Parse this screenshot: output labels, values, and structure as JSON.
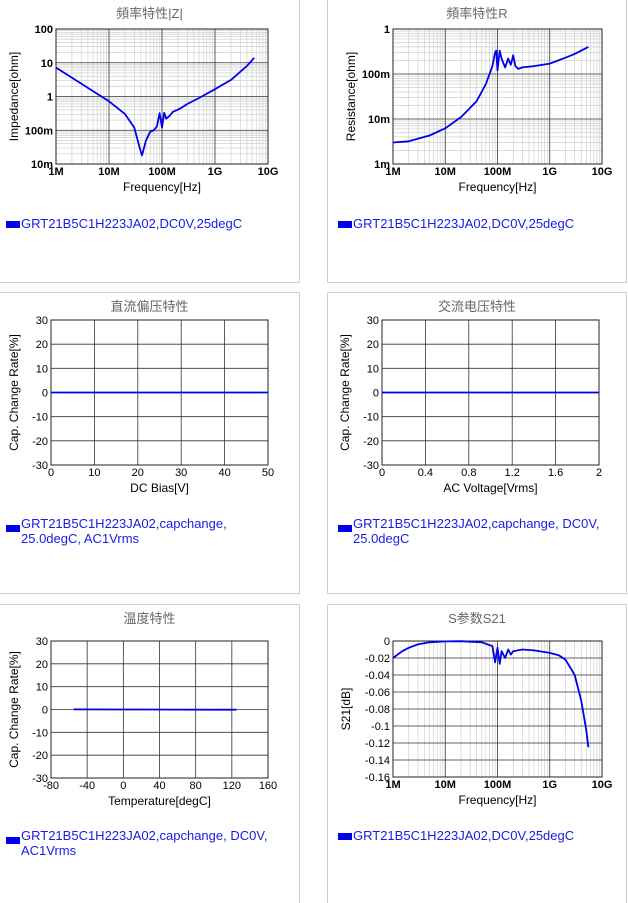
{
  "colors": {
    "series": "#0000ee",
    "grid": "#808080",
    "legend_text": "#1a1ae6"
  },
  "panels": [
    {
      "title": "頻率特性|Z|",
      "legend": "GRT21B5C1H223JA02,DC0V,25degC"
    },
    {
      "title": "頻率特性R",
      "legend": "GRT21B5C1H223JA02,DC0V,25degC"
    },
    {
      "title": "直流偏压特性",
      "legend_lines": [
        "GRT21B5C1H223JA02,capchange,",
        "25.0degC, AC1Vrms"
      ]
    },
    {
      "title": "交流电压特性",
      "legend_lines": [
        "GRT21B5C1H223JA02,capchange, DC0V,",
        "25.0degC"
      ]
    },
    {
      "title": "温度特性",
      "legend_lines": [
        "GRT21B5C1H223JA02,capchange, DC0V,",
        "AC1Vrms"
      ]
    },
    {
      "title": "S参数S21",
      "legend": "GRT21B5C1H223JA02,DC0V,25degC"
    }
  ],
  "chart_data": [
    {
      "type": "line",
      "title": "頻率特性|Z|",
      "xlabel": "Frequency[Hz]",
      "ylabel": "Impedance[ohm]",
      "xscale": "log",
      "yscale": "log",
      "xlim": [
        1000000,
        10000000000
      ],
      "ylim": [
        0.01,
        100
      ],
      "xticks": [
        "1M",
        "10M",
        "100M",
        "1G",
        "10G"
      ],
      "yticks": [
        "10m",
        "100m",
        "1",
        "10",
        "100"
      ],
      "grid": true,
      "series": [
        {
          "x": [
            1000000,
            2000000,
            5000000,
            10000000,
            20000000,
            30000000,
            38000000,
            42000000,
            50000000,
            60000000,
            70000000,
            80000000,
            90000000,
            100000000,
            110000000,
            120000000,
            140000000,
            160000000,
            180000000,
            200000000,
            230000000,
            300000000,
            500000000,
            1000000000,
            2000000000,
            4000000000,
            5500000000
          ],
          "y": [
            7.2,
            3.6,
            1.45,
            0.72,
            0.3,
            0.12,
            0.03,
            0.018,
            0.05,
            0.09,
            0.1,
            0.13,
            0.32,
            0.12,
            0.33,
            0.22,
            0.27,
            0.35,
            0.38,
            0.41,
            0.46,
            0.6,
            0.9,
            1.65,
            3.1,
            8.0,
            14.0
          ]
        }
      ]
    },
    {
      "type": "line",
      "title": "頻率特性R",
      "xlabel": "Frequency[Hz]",
      "ylabel": "Resistance[ohm]",
      "xscale": "log",
      "yscale": "log",
      "xlim": [
        1000000,
        10000000000
      ],
      "ylim": [
        0.001,
        1
      ],
      "xticks": [
        "1M",
        "10M",
        "100M",
        "1G",
        "10G"
      ],
      "yticks": [
        "1m",
        "10m",
        "100m",
        "1"
      ],
      "grid": true,
      "series": [
        {
          "x": [
            1000000,
            2000000,
            5000000,
            10000000,
            20000000,
            40000000,
            60000000,
            80000000,
            90000000,
            95000000,
            100000000,
            110000000,
            120000000,
            140000000,
            160000000,
            180000000,
            200000000,
            220000000,
            250000000,
            300000000,
            500000000,
            1000000000,
            2000000000,
            3000000000,
            5500000000
          ],
          "y": [
            0.003,
            0.0032,
            0.0043,
            0.0062,
            0.011,
            0.025,
            0.06,
            0.15,
            0.3,
            0.33,
            0.12,
            0.33,
            0.22,
            0.14,
            0.22,
            0.16,
            0.26,
            0.15,
            0.13,
            0.14,
            0.15,
            0.17,
            0.23,
            0.28,
            0.4
          ]
        }
      ]
    },
    {
      "type": "line",
      "title": "直流偏压特性",
      "xlabel": "DC Bias[V]",
      "ylabel": "Cap. Change Rate[%]",
      "xlim": [
        0,
        50
      ],
      "ylim": [
        -30,
        30
      ],
      "xticks": [
        "0",
        "10",
        "20",
        "30",
        "40",
        "50"
      ],
      "yticks": [
        "-30",
        "-20",
        "-10",
        "0",
        "10",
        "20",
        "30"
      ],
      "grid": true,
      "series": [
        {
          "x": [
            0,
            50
          ],
          "y": [
            0,
            0
          ]
        }
      ]
    },
    {
      "type": "line",
      "title": "交流电压特性",
      "xlabel": "AC Voltage[Vrms]",
      "ylabel": "Cap. Change Rate[%]",
      "xlim": [
        0,
        2
      ],
      "ylim": [
        -30,
        30
      ],
      "xticks": [
        "0",
        "0.4",
        "0.8",
        "1.2",
        "1.6",
        "2"
      ],
      "yticks": [
        "-30",
        "-20",
        "-10",
        "0",
        "10",
        "20",
        "30"
      ],
      "grid": true,
      "series": [
        {
          "x": [
            0,
            2
          ],
          "y": [
            0,
            0
          ]
        }
      ]
    },
    {
      "type": "line",
      "title": "温度特性",
      "xlabel": "Temperature[degC]",
      "ylabel": "Cap. Change Rate[%]",
      "xlim": [
        -80,
        160
      ],
      "ylim": [
        -30,
        30
      ],
      "xticks": [
        "-80",
        "-40",
        "0",
        "40",
        "80",
        "120",
        "160"
      ],
      "yticks": [
        "-30",
        "-20",
        "-10",
        "0",
        "10",
        "20",
        "30"
      ],
      "grid": true,
      "series": [
        {
          "x": [
            -55,
            0,
            25,
            60,
            100,
            125
          ],
          "y": [
            0.05,
            0,
            0,
            -0.05,
            -0.1,
            -0.1
          ]
        }
      ]
    },
    {
      "type": "line",
      "title": "S参数S21",
      "xlabel": "Frequency[Hz]",
      "ylabel": "S21[dB]",
      "xscale": "log",
      "xlim": [
        1000000,
        10000000000
      ],
      "ylim": [
        -0.16,
        0
      ],
      "xticks": [
        "1M",
        "10M",
        "100M",
        "1G",
        "10G"
      ],
      "yticks": [
        "-0.16",
        "-0.14",
        "-0.12",
        "-0.1",
        "-0.08",
        "-0.06",
        "-0.04",
        "-0.02",
        "0"
      ],
      "grid": true,
      "series": [
        {
          "x": [
            1000000,
            1500000,
            2000000,
            3000000,
            5000000,
            10000000,
            20000000,
            50000000,
            80000000,
            90000000,
            100000000,
            110000000,
            120000000,
            140000000,
            160000000,
            180000000,
            200000000,
            300000000,
            500000000,
            1000000000,
            1500000000,
            2000000000,
            3000000000,
            4000000000,
            5000000000,
            5500000000
          ],
          "y": [
            -0.02,
            -0.012,
            -0.008,
            -0.004,
            -0.0015,
            -0.0005,
            -0.0002,
            -0.0015,
            -0.006,
            -0.025,
            -0.008,
            -0.027,
            -0.012,
            -0.02,
            -0.01,
            -0.016,
            -0.012,
            -0.01,
            -0.011,
            -0.014,
            -0.017,
            -0.022,
            -0.04,
            -0.07,
            -0.105,
            -0.125
          ]
        }
      ]
    }
  ]
}
